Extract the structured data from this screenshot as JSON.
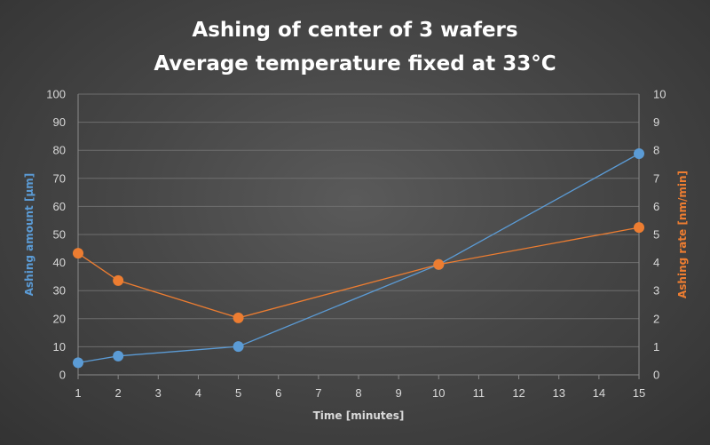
{
  "chart_data": {
    "type": "line",
    "title_lines": [
      "Ashing of center of 3 wafers",
      "Average temperature fixed at 33°C"
    ],
    "xlabel": "Time [minutes]",
    "ylabel_left": "Ashing amount [µm]",
    "ylabel_right": "Ashing rate [nm/min]",
    "x_ticks": [
      "1",
      "2",
      "3",
      "4",
      "5",
      "6",
      "7",
      "8",
      "9",
      "10",
      "11",
      "12",
      "13",
      "14",
      "15"
    ],
    "x_range": [
      1,
      15
    ],
    "y_left_range": [
      0,
      100
    ],
    "y_left_ticks": [
      "0",
      "10",
      "20",
      "30",
      "40",
      "50",
      "60",
      "70",
      "80",
      "90",
      "100"
    ],
    "y_right_range": [
      0,
      10
    ],
    "y_right_ticks": [
      "0",
      "1",
      "2",
      "3",
      "4",
      "5",
      "6",
      "7",
      "8",
      "9",
      "10"
    ],
    "grid": true,
    "series": [
      {
        "axis": "left",
        "color": "#5b9bd5",
        "x": [
          1,
          2,
          5,
          10,
          15
        ],
        "values": [
          4.3,
          6.7,
          10.1,
          39.3,
          78.8
        ]
      },
      {
        "axis": "right",
        "color": "#ed7d31",
        "x": [
          1,
          2,
          5,
          10,
          15
        ],
        "values": [
          4.33,
          3.36,
          2.03,
          3.93,
          5.25
        ]
      }
    ]
  }
}
